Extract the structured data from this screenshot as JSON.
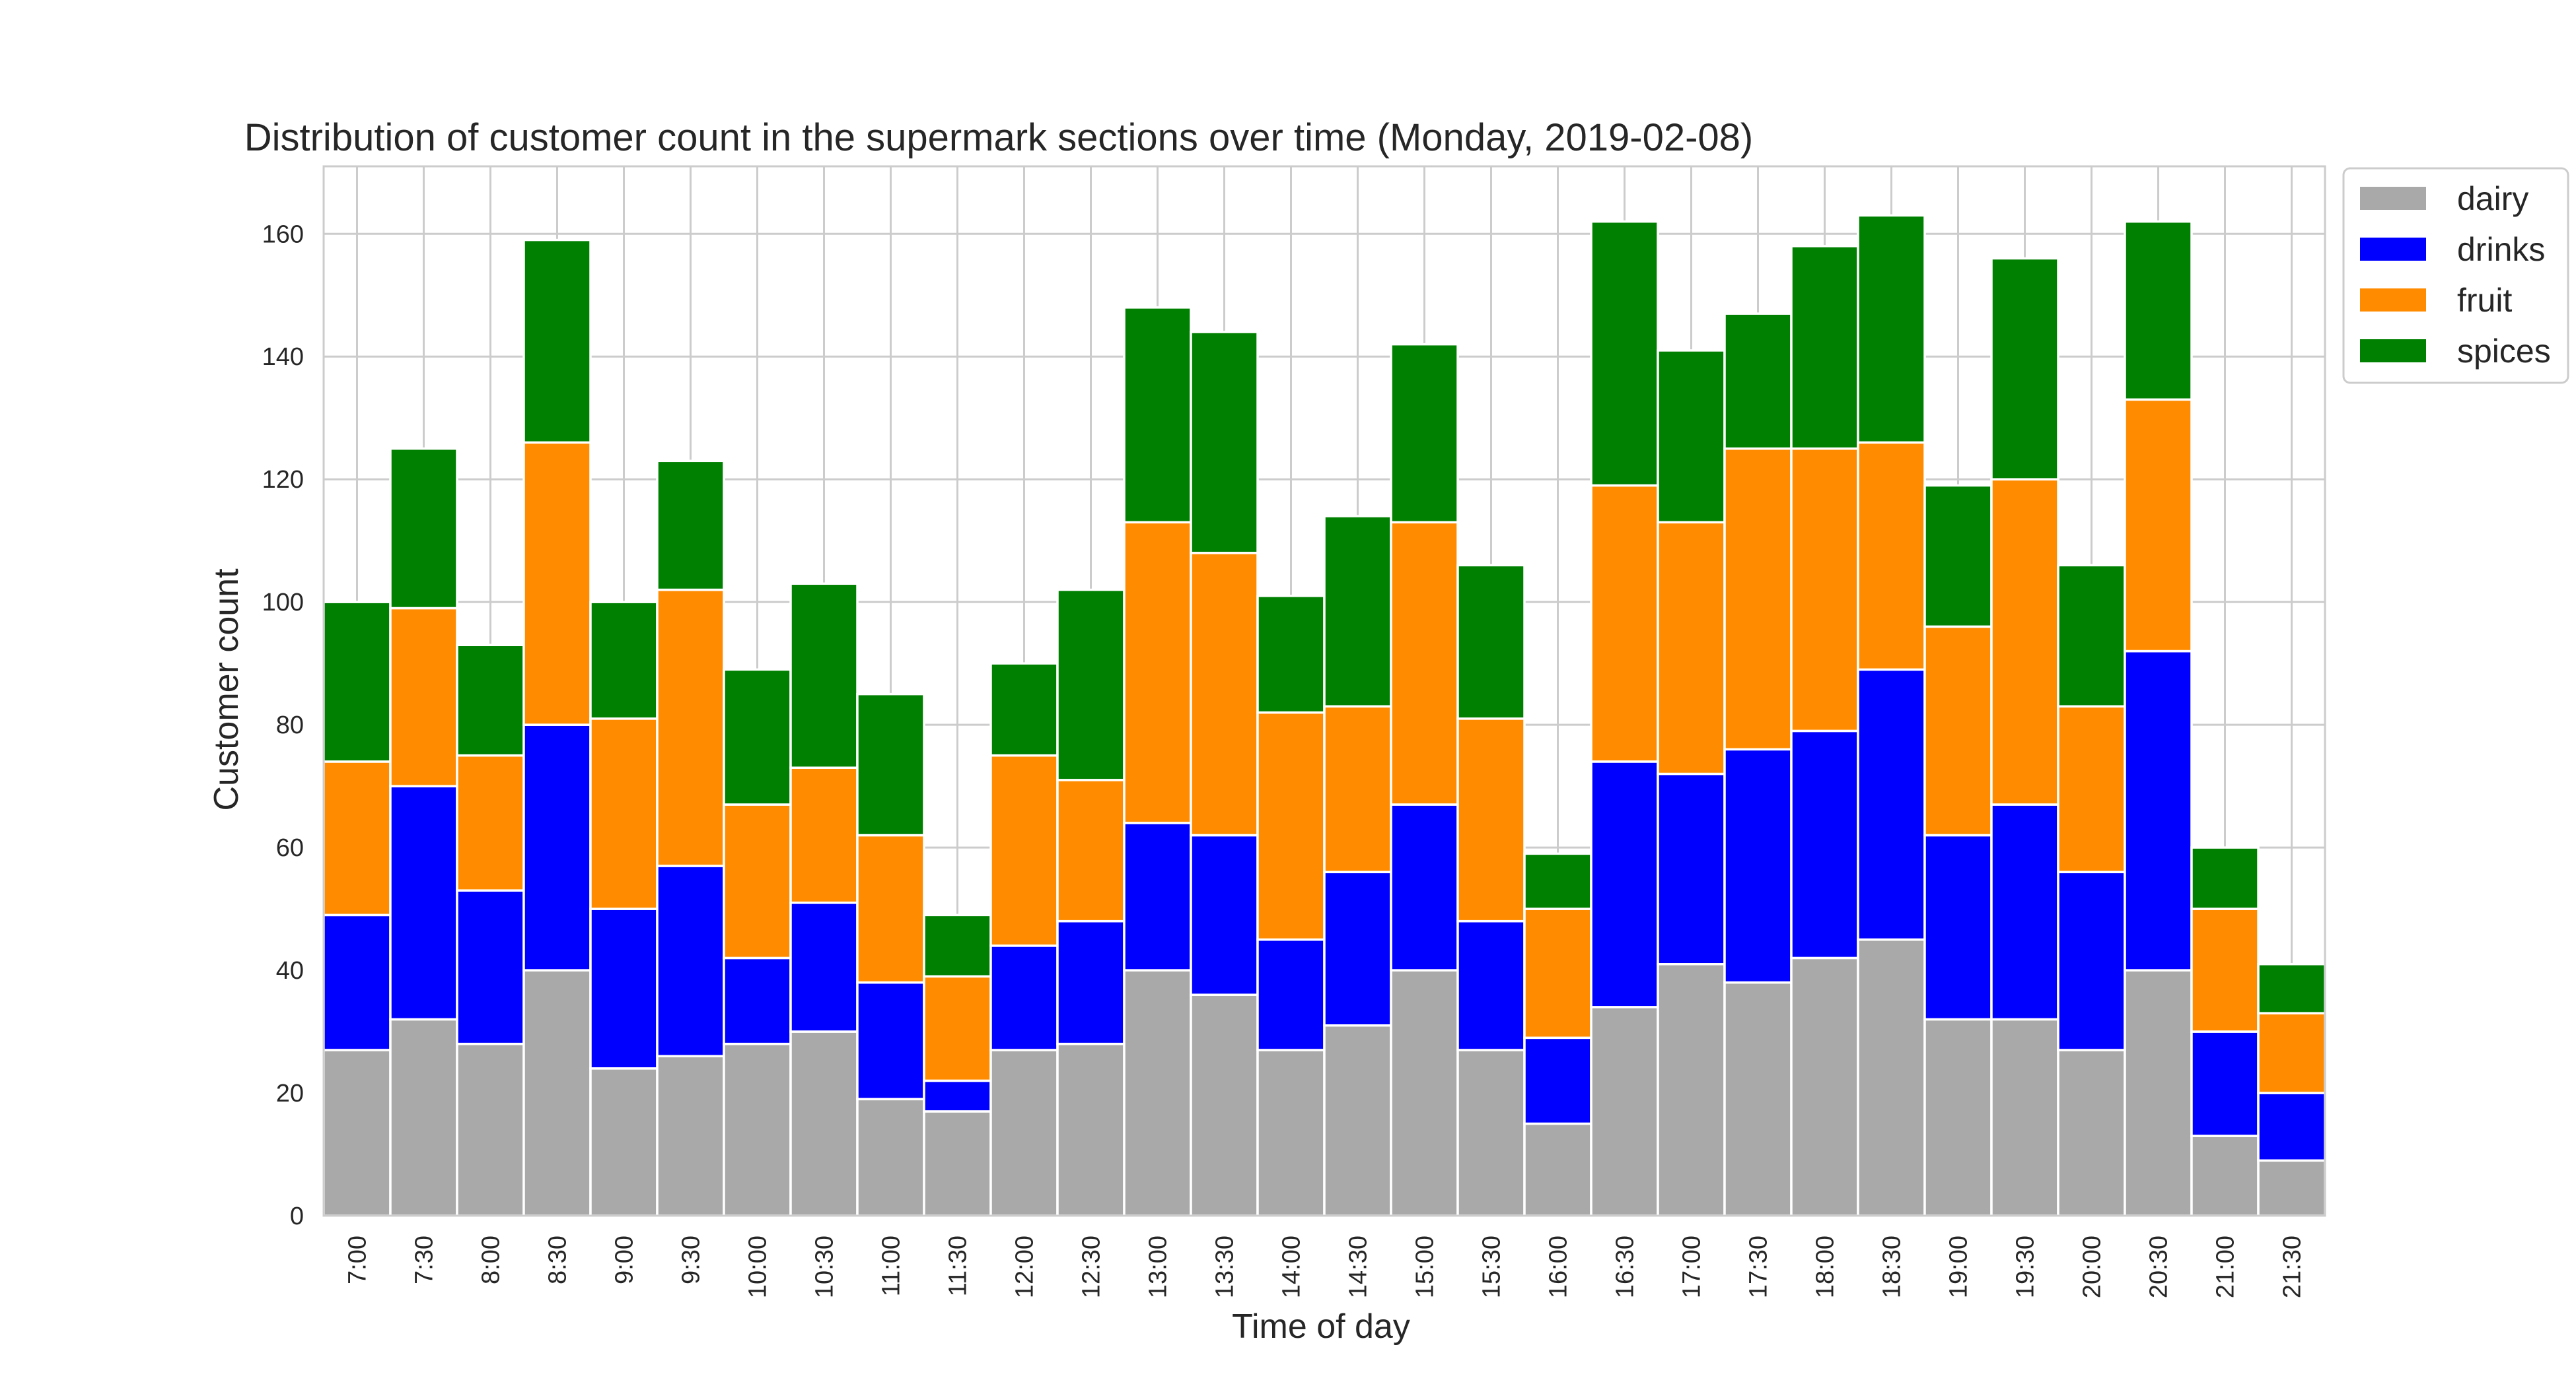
{
  "chart_data": {
    "type": "bar",
    "stacked": true,
    "title": "Distribution of customer count in the supermark sections over time (Monday, 2019-02-08)",
    "xlabel": "Time of day",
    "ylabel": "Customer count",
    "ylim": [
      0,
      171
    ],
    "yticks": [
      0,
      20,
      40,
      60,
      80,
      100,
      120,
      140,
      160
    ],
    "grid": true,
    "legend_position": "outside-top-right",
    "categories": [
      "7:00",
      "7:30",
      "8:00",
      "8:30",
      "9:00",
      "9:30",
      "10:00",
      "10:30",
      "11:00",
      "11:30",
      "12:00",
      "12:30",
      "13:00",
      "13:30",
      "14:00",
      "14:30",
      "15:00",
      "15:30",
      "16:00",
      "16:30",
      "17:00",
      "17:30",
      "18:00",
      "18:30",
      "19:00",
      "19:30",
      "20:00",
      "20:30",
      "21:00",
      "21:30"
    ],
    "series": [
      {
        "name": "dairy",
        "color": "#a9a9a9",
        "values": [
          27,
          32,
          28,
          40,
          24,
          26,
          28,
          30,
          19,
          17,
          27,
          28,
          40,
          36,
          27,
          31,
          40,
          27,
          15,
          34,
          41,
          38,
          42,
          45,
          32,
          32,
          27,
          40,
          13,
          9
        ]
      },
      {
        "name": "drinks",
        "color": "#0000ff",
        "values": [
          22,
          38,
          25,
          40,
          26,
          31,
          14,
          21,
          19,
          5,
          17,
          20,
          24,
          26,
          18,
          25,
          27,
          21,
          14,
          40,
          31,
          38,
          37,
          44,
          30,
          35,
          29,
          52,
          17,
          11
        ]
      },
      {
        "name": "fruit",
        "color": "#ff8c00",
        "values": [
          25,
          29,
          22,
          46,
          31,
          45,
          25,
          22,
          24,
          17,
          31,
          23,
          49,
          46,
          37,
          27,
          46,
          33,
          21,
          45,
          41,
          49,
          46,
          37,
          34,
          53,
          27,
          41,
          20,
          13
        ]
      },
      {
        "name": "spices",
        "color": "#008000",
        "values": [
          26,
          26,
          18,
          33,
          19,
          21,
          22,
          30,
          23,
          10,
          15,
          31,
          35,
          36,
          19,
          31,
          29,
          25,
          9,
          43,
          28,
          22,
          33,
          37,
          23,
          36,
          23,
          29,
          10,
          8
        ]
      }
    ]
  }
}
